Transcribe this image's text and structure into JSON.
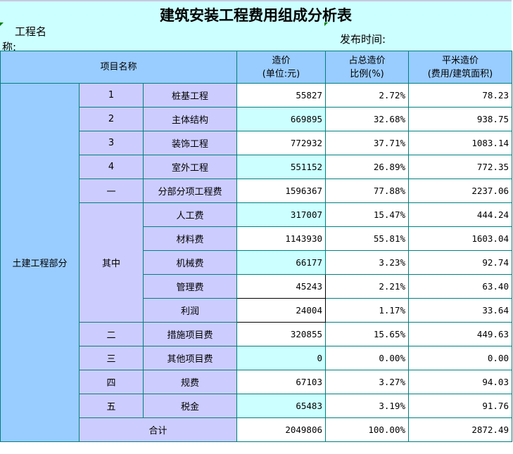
{
  "title": "建筑安装工程费用组成分析表",
  "project_name_label": "工程名称:",
  "publish_time_label": "发布时间:",
  "headers": {
    "item_name": "项目名称",
    "cost_line1": "造价",
    "cost_line2": "(单位:元)",
    "ratio_line1": "占总造价",
    "ratio_line2": "比例(%)",
    "sqm_line1": "平米造价",
    "sqm_line2": "(费用/建筑面积)"
  },
  "section_label": "土建工程部分",
  "group_label": "其中",
  "colors": {
    "title_bg": "#ccffff",
    "header_bg": "#99ccff",
    "label_bg": "#ccccff",
    "border": "#008080"
  },
  "rows": [
    {
      "no": "1",
      "name": "桩基工程",
      "cost": "55827",
      "ratio": "2.72%",
      "sqm": "78.23",
      "hl": false
    },
    {
      "no": "2",
      "name": "主体结构",
      "cost": "669895",
      "ratio": "32.68%",
      "sqm": "938.75",
      "hl": true
    },
    {
      "no": "3",
      "name": "装饰工程",
      "cost": "772932",
      "ratio": "37.71%",
      "sqm": "1083.14",
      "hl": false
    },
    {
      "no": "4",
      "name": "室外工程",
      "cost": "551152",
      "ratio": "26.89%",
      "sqm": "772.35",
      "hl": true
    },
    {
      "no": "一",
      "name": "分部分项工程费",
      "cost": "1596367",
      "ratio": "77.88%",
      "sqm": "2237.06",
      "hl": false
    },
    {
      "no": "",
      "name": "人工费",
      "cost": "317007",
      "ratio": "15.47%",
      "sqm": "444.24",
      "hl": true
    },
    {
      "no": "",
      "name": "材料费",
      "cost": "1143930",
      "ratio": "55.81%",
      "sqm": "1603.04",
      "hl": false
    },
    {
      "no": "",
      "name": "机械费",
      "cost": "66177",
      "ratio": "3.23%",
      "sqm": "92.74",
      "hl": true
    },
    {
      "no": "",
      "name": "管理费",
      "cost": "45243",
      "ratio": "2.21%",
      "sqm": "63.40",
      "hl": false,
      "box": true
    },
    {
      "no": "",
      "name": "利润",
      "cost": "24004",
      "ratio": "1.17%",
      "sqm": "33.64",
      "hl": false,
      "box": true
    },
    {
      "no": "二",
      "name": "措施项目费",
      "cost": "320855",
      "ratio": "15.65%",
      "sqm": "449.63",
      "hl": false
    },
    {
      "no": "三",
      "name": "其他项目费",
      "cost": "0",
      "ratio": "0.00%",
      "sqm": "0.00",
      "hl": true
    },
    {
      "no": "四",
      "name": "规费",
      "cost": "67103",
      "ratio": "3.27%",
      "sqm": "94.03",
      "hl": false
    },
    {
      "no": "五",
      "name": "税金",
      "cost": "65483",
      "ratio": "3.19%",
      "sqm": "91.76",
      "hl": true
    }
  ],
  "total": {
    "label": "合计",
    "cost": "2049806",
    "ratio": "100.00%",
    "sqm": "2872.49"
  }
}
